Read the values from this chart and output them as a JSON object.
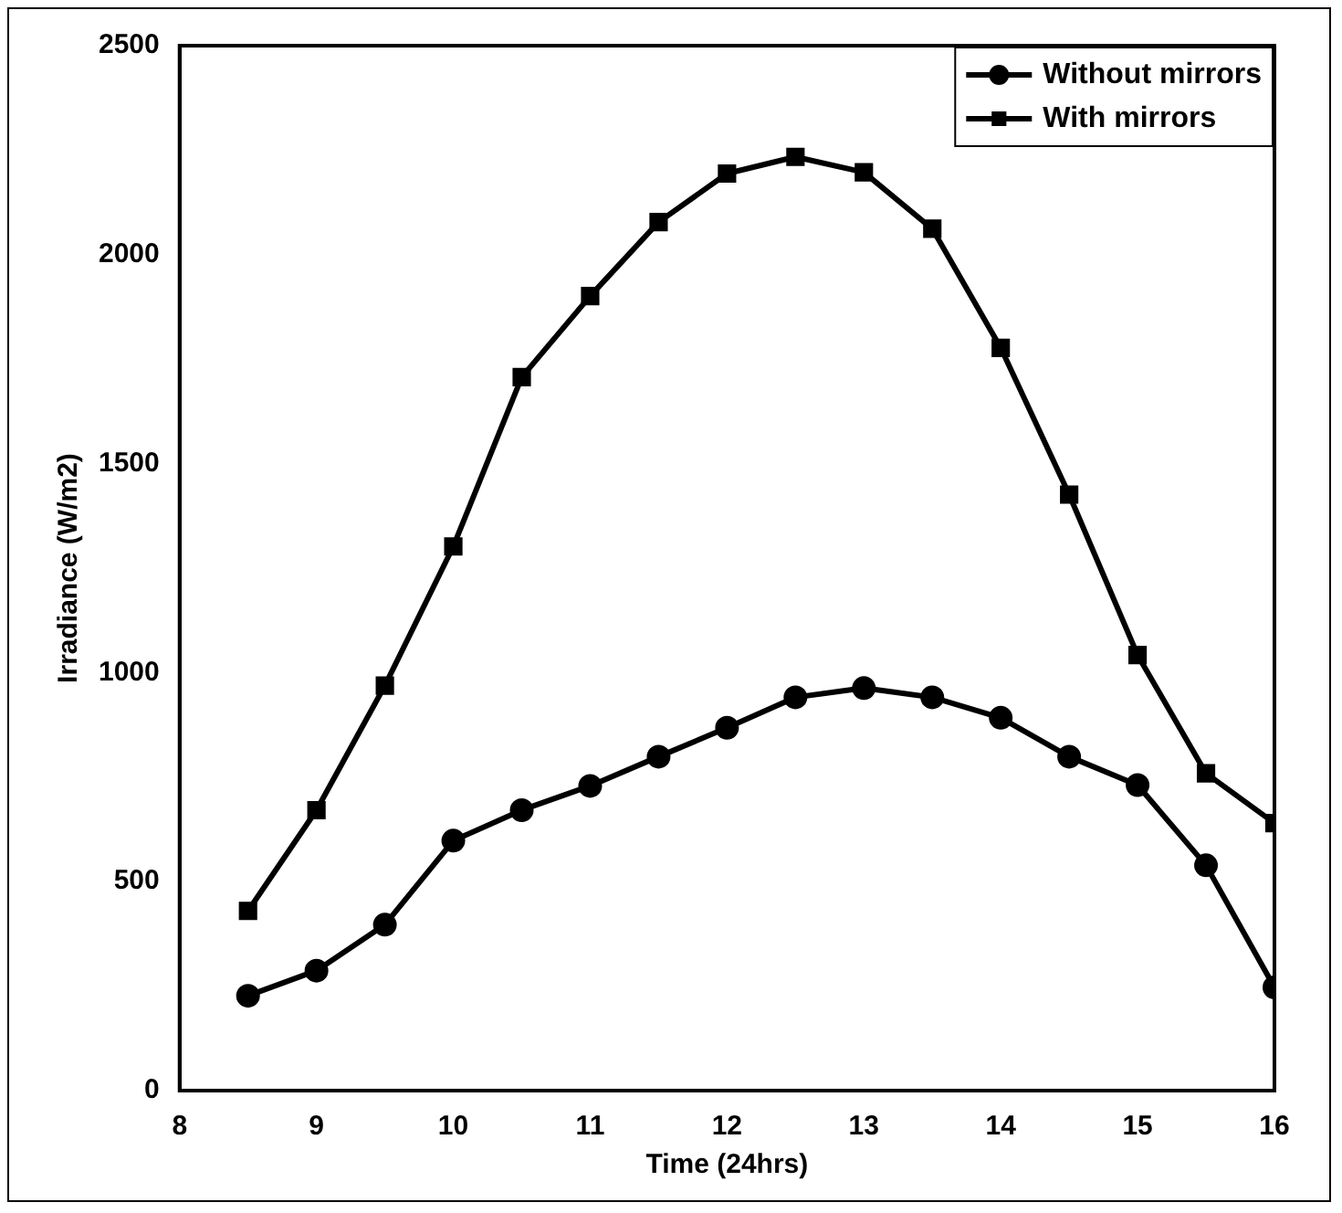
{
  "chart_data": {
    "type": "line",
    "xlabel": "Time (24hrs)",
    "ylabel": "Irradiance (W/m2)",
    "x": [
      8.5,
      9,
      9.5,
      10,
      10.5,
      11,
      11.5,
      12,
      12.5,
      13,
      13.5,
      14,
      14.5,
      15,
      15.5,
      16
    ],
    "series": [
      {
        "name": "Without mirrors",
        "color": "#000000",
        "marker": "circle",
        "values": [
          227,
          287,
          397,
          598,
          671,
          729,
          799,
          868,
          941,
          963,
          941,
          892,
          799,
          731,
          539,
          247
        ]
      },
      {
        "name": "With mirrors",
        "color": "#000000",
        "marker": "square",
        "values": [
          430,
          671,
          969,
          1302,
          1707,
          1901,
          2078,
          2194,
          2234,
          2197,
          2062,
          1777,
          1426,
          1042,
          759,
          640
        ]
      }
    ],
    "xlim": [
      8,
      16
    ],
    "xticks": [
      8,
      9,
      10,
      11,
      12,
      13,
      14,
      15,
      16
    ],
    "ylim": [
      0,
      2500
    ],
    "yticks": [
      0,
      500,
      1000,
      1500,
      2000,
      2500
    ],
    "grid": false,
    "legend": "top right",
    "line_style": "solid"
  }
}
